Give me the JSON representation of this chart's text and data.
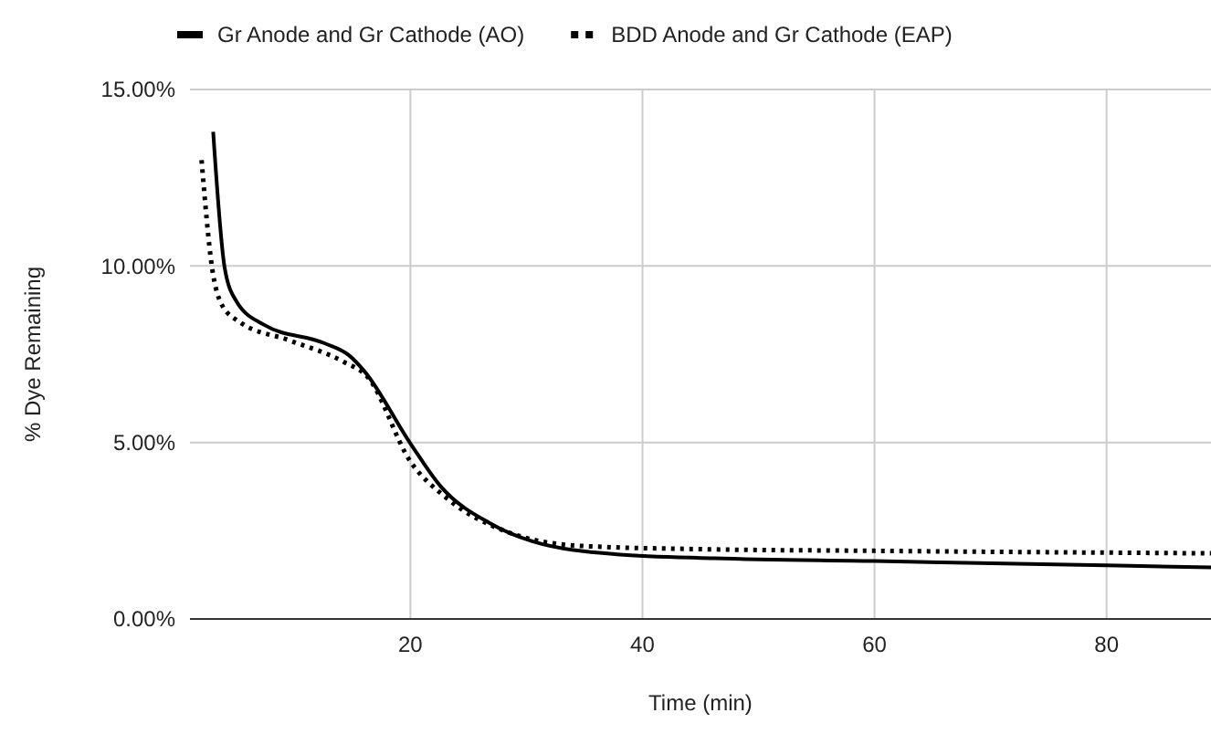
{
  "chart_data": {
    "type": "line",
    "xlabel": "Time (min)",
    "ylabel": "% Dye Remaining",
    "xlim": [
      1,
      89
    ],
    "xticks": [
      20,
      40,
      60,
      80
    ],
    "ylim": [
      0,
      15
    ],
    "yticks": [
      {
        "value": 0,
        "label": "0.00%"
      },
      {
        "value": 5,
        "label": "5.00%"
      },
      {
        "value": 10,
        "label": "10.00%"
      },
      {
        "value": 15,
        "label": "15.00%"
      }
    ],
    "grid": true,
    "legend": "top",
    "series": [
      {
        "name": "Gr Anode and Gr Cathode (AO)",
        "color": "#000000",
        "line_style": "solid",
        "x": [
          3,
          4,
          5,
          7.4,
          12.6,
          14.7,
          16,
          20,
          22.6,
          26.8,
          30.5,
          37.8,
          46.2,
          60,
          89
        ],
        "values": [
          13.8,
          9.93,
          9,
          8.33,
          7.81,
          7.47,
          7.03,
          4.97,
          3.76,
          2.72,
          2.2,
          1.83,
          1.72,
          1.64,
          1.46
        ]
      },
      {
        "name": "BDD Anode and Gr Cathode (EAP)",
        "color": "#000000",
        "line_style": "dotted",
        "x": [
          2,
          2.9,
          3.7,
          5.3,
          9.5,
          14.2,
          16.3,
          20,
          23.1,
          28.4,
          34.7,
          44.6,
          60,
          89
        ],
        "values": [
          13,
          9.96,
          8.93,
          8.41,
          7.9,
          7.29,
          6.86,
          4.46,
          3.43,
          2.46,
          2.07,
          1.98,
          1.93,
          1.86
        ]
      }
    ]
  }
}
